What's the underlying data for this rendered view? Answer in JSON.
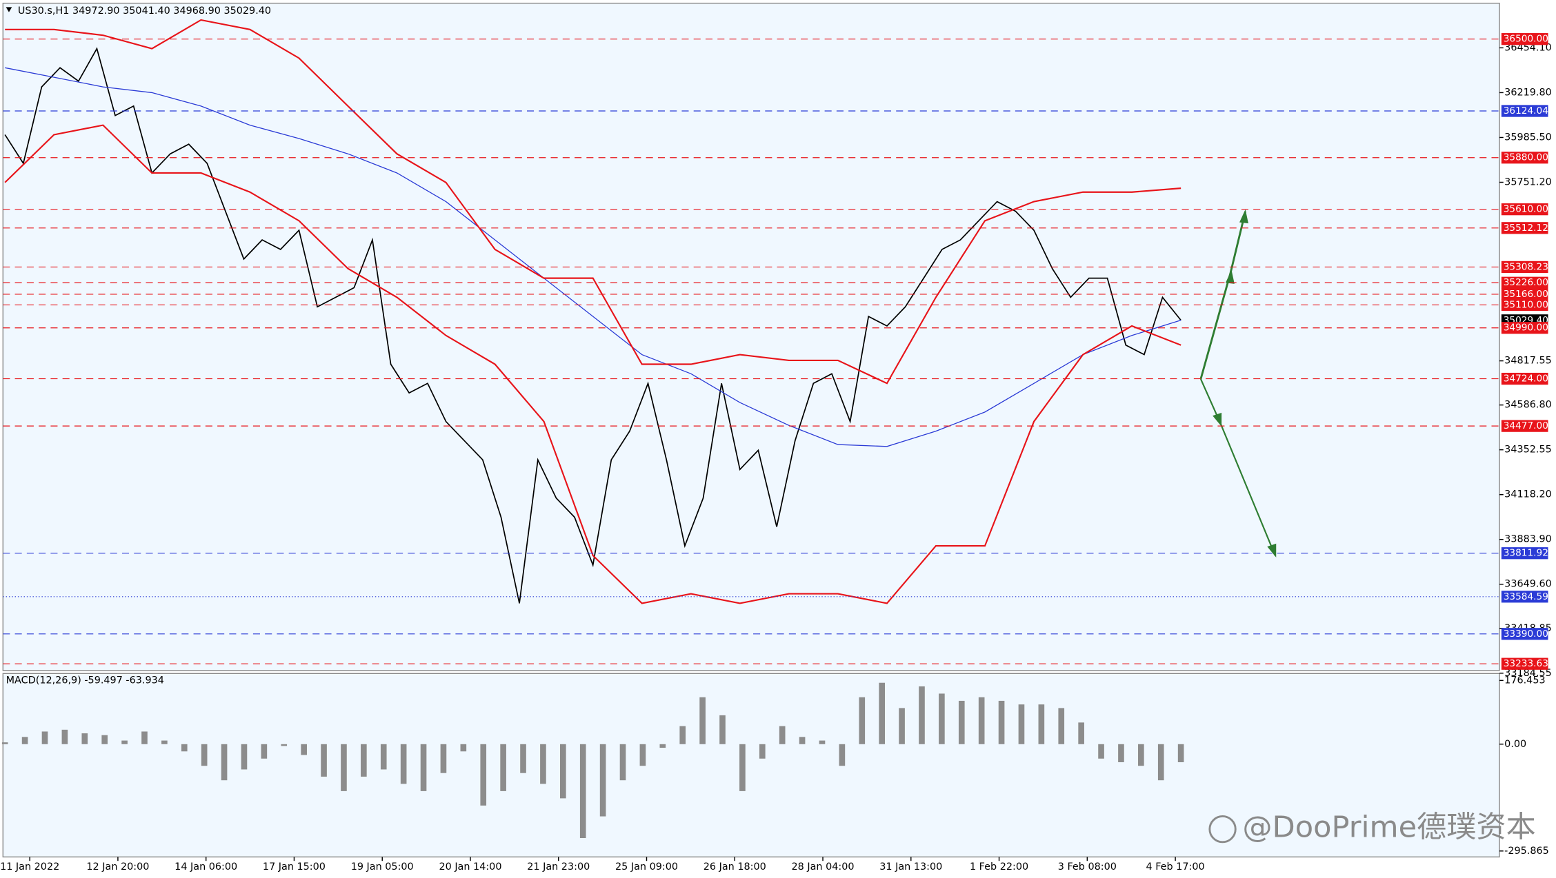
{
  "chart_data": [
    {
      "type": "line",
      "title": "US30.s,H1  34972.90 35041.40 34968.90 35029.40",
      "ylim": [
        33198.5,
        36687.4
      ],
      "yticks": [
        {
          "value": 36454.1,
          "label": "36454.10"
        },
        {
          "value": 36219.8,
          "label": "36219.80"
        },
        {
          "value": 35985.5,
          "label": "35985.50"
        },
        {
          "value": 35751.2,
          "label": "35751.20"
        },
        {
          "value": 34817.55,
          "label": "34817.55"
        },
        {
          "value": 34586.8,
          "label": "34586.80"
        },
        {
          "value": 34352.55,
          "label": "34352.55"
        },
        {
          "value": 34118.2,
          "label": "34118.20"
        },
        {
          "value": 33883.9,
          "label": "33883.90"
        },
        {
          "value": 33649.6,
          "label": "33649.60"
        },
        {
          "value": 33418.85,
          "label": "33418.85"
        },
        {
          "value": 33184.55,
          "label": "33184.55"
        }
      ],
      "x_labels": [
        "11 Jan 2022",
        "12 Jan 20:00",
        "14 Jan 06:00",
        "17 Jan 15:00",
        "19 Jan 05:00",
        "20 Jan 14:00",
        "21 Jan 23:00",
        "25 Jan 09:00",
        "26 Jan 18:00",
        "28 Jan 04:00",
        "31 Jan 13:00",
        "1 Feb 22:00",
        "3 Feb 08:00",
        "4 Feb 17:00"
      ],
      "series": [
        {
          "color": "#000000",
          "values": [
            36000,
            35850,
            36250,
            36350,
            36280,
            36450,
            36100,
            36150,
            35800,
            35900,
            35950,
            35850,
            35600,
            35350,
            35450,
            35400,
            35500,
            35100,
            35150,
            35200,
            35450,
            34800,
            34650,
            34700,
            34500,
            34400,
            34300,
            34000,
            33550,
            34300,
            34100,
            34000,
            33750,
            34300,
            34450,
            34700,
            34300,
            33850,
            34100,
            34700,
            34250,
            34350,
            33950,
            34400,
            34700,
            34750,
            34500,
            35050,
            35000,
            35100,
            35250,
            35400,
            35450,
            35550,
            35650,
            35600,
            35500,
            35300,
            35150,
            35250,
            35250,
            34900,
            34850,
            35150,
            35030
          ]
        },
        {
          "color": "#2b3bd6",
          "values": [
            36350,
            36300,
            36250,
            36220,
            36150,
            36050,
            35980,
            35900,
            35800,
            35650,
            35450,
            35250,
            35050,
            34850,
            34750,
            34600,
            34480,
            34380,
            34370,
            34450,
            34550,
            34700,
            34850,
            34950,
            35030
          ]
        },
        {
          "color": "#e8141a",
          "values": [
            36550,
            36550,
            36520,
            36450,
            36600,
            36550,
            36400,
            36150,
            35900,
            35750,
            35400,
            35250,
            35250,
            34800,
            34800,
            34850,
            34820,
            34820,
            34700,
            35150,
            35550,
            35650,
            35700,
            35700,
            35720
          ]
        },
        {
          "color": "#e8141a",
          "values": [
            35750,
            36000,
            36050,
            35800,
            35800,
            35700,
            35550,
            35300,
            35150,
            34950,
            34800,
            34500,
            33800,
            33550,
            33600,
            33550,
            33600,
            33600,
            33550,
            33850,
            33850,
            34500,
            34850,
            35000,
            34900
          ]
        }
      ],
      "levels": [
        {
          "value": 36500,
          "label": "36500.00",
          "color": "#e8141a",
          "style": "dashed"
        },
        {
          "value": 36124.04,
          "label": "36124.04",
          "color": "#2b3bd6",
          "style": "dashed"
        },
        {
          "value": 35880,
          "label": "35880.00",
          "color": "#e8141a",
          "style": "dashed"
        },
        {
          "value": 35610,
          "label": "35610.00",
          "color": "#e8141a",
          "style": "dashed"
        },
        {
          "value": 35512.12,
          "label": "35512.12",
          "color": "#e8141a",
          "style": "dashed"
        },
        {
          "value": 35308.23,
          "label": "35308.23",
          "color": "#e8141a",
          "style": "dashed"
        },
        {
          "value": 35226,
          "label": "35226.00",
          "color": "#e8141a",
          "style": "dashed"
        },
        {
          "value": 35166,
          "label": "35166.00",
          "color": "#e8141a",
          "style": "dashed"
        },
        {
          "value": 35110,
          "label": "35110.00",
          "color": "#e8141a",
          "style": "dashed"
        },
        {
          "value": 35029.4,
          "label": "35029.40",
          "color": "#000000",
          "style": "none"
        },
        {
          "value": 34990,
          "label": "34990.00",
          "color": "#e8141a",
          "style": "dashed"
        },
        {
          "value": 34724,
          "label": "34724.00",
          "color": "#e8141a",
          "style": "dashed"
        },
        {
          "value": 34477,
          "label": "34477.00",
          "color": "#e8141a",
          "style": "dashed"
        },
        {
          "value": 33811.92,
          "label": "33811.92",
          "color": "#2b3bd6",
          "style": "dashed"
        },
        {
          "value": 33584.59,
          "label": "33584.59",
          "color": "#2b3bd6",
          "style": "dotted"
        },
        {
          "value": 33390,
          "label": "33390.00",
          "color": "#2b3bd6",
          "style": "dashed"
        },
        {
          "value": 33233.63,
          "label": "33233.63",
          "color": "#e8141a",
          "style": "dashed"
        }
      ]
    },
    {
      "type": "bar",
      "title": "MACD(12,26,9) -59.497 -63.934",
      "ylim": [
        -295.865,
        176.453
      ],
      "yticks": [
        {
          "value": 176.453,
          "label": "176.453"
        },
        {
          "value": 0,
          "label": "0.00"
        },
        {
          "value": -295.865,
          "label": "-295.865"
        }
      ],
      "color": "#8c8c8c",
      "values": [
        5,
        20,
        35,
        40,
        30,
        25,
        10,
        35,
        10,
        -20,
        -60,
        -100,
        -70,
        -40,
        -5,
        -30,
        -90,
        -130,
        -90,
        -70,
        -110,
        -130,
        -80,
        -20,
        -170,
        -130,
        -80,
        -110,
        -150,
        -260,
        -200,
        -100,
        -60,
        -10,
        50,
        130,
        80,
        -130,
        -40,
        50,
        20,
        10,
        -60,
        130,
        170,
        100,
        160,
        140,
        120,
        130,
        120,
        110,
        110,
        100,
        60,
        -40,
        -50,
        -60,
        -100,
        -50
      ]
    }
  ],
  "watermark": "@DooPrime德璞资本"
}
